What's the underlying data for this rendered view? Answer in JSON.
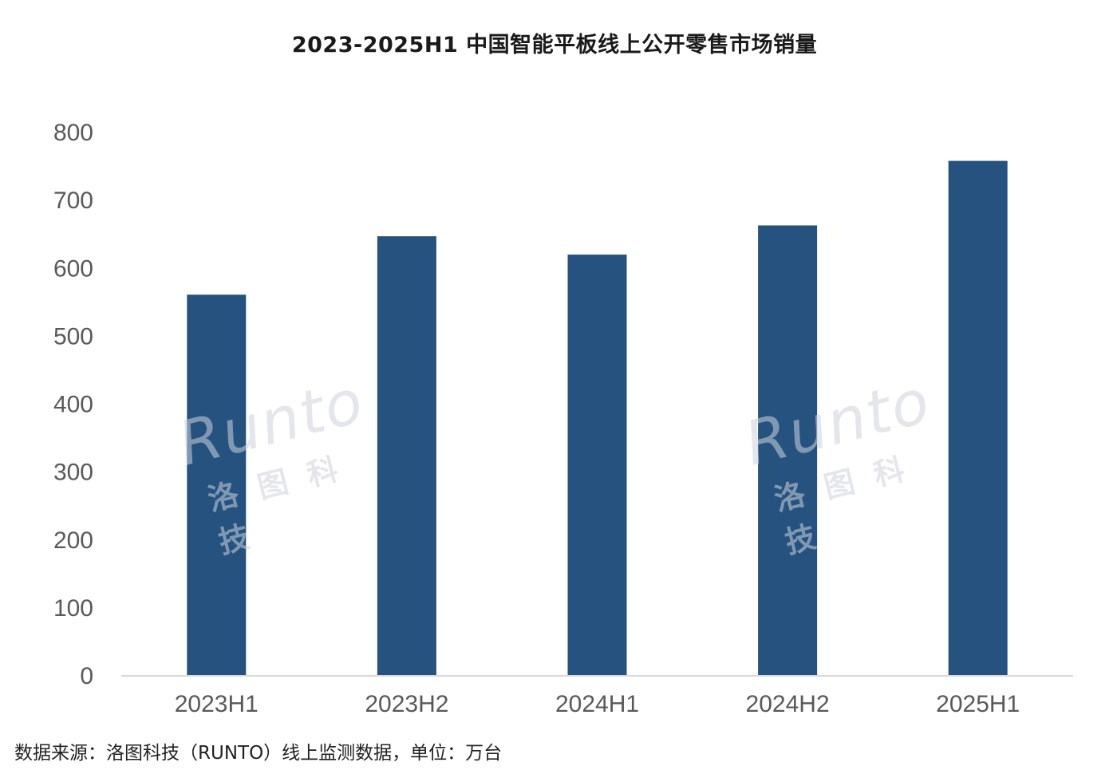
{
  "chart_data": {
    "type": "bar",
    "title": "2023-2025H1 中国智能平板线上公开零售市场销量",
    "categories": [
      "2023H1",
      "2023H2",
      "2024H1",
      "2024H2",
      "2025H1"
    ],
    "series": [
      {
        "values": [
          560,
          646,
          619,
          662,
          757
        ]
      }
    ],
    "xlabel": "",
    "ylabel": "",
    "ylim": [
      0,
      800
    ],
    "yticks": [
      0,
      100,
      200,
      300,
      400,
      500,
      600,
      700,
      800
    ],
    "grid": false,
    "legend": "none",
    "bar_color": "#25527f"
  },
  "footer": {
    "source": "数据来源：洛图科技（RUNTO）线上监测数据，单位：万台"
  },
  "watermark": {
    "brand": "Runto",
    "cn": "洛图科技"
  }
}
